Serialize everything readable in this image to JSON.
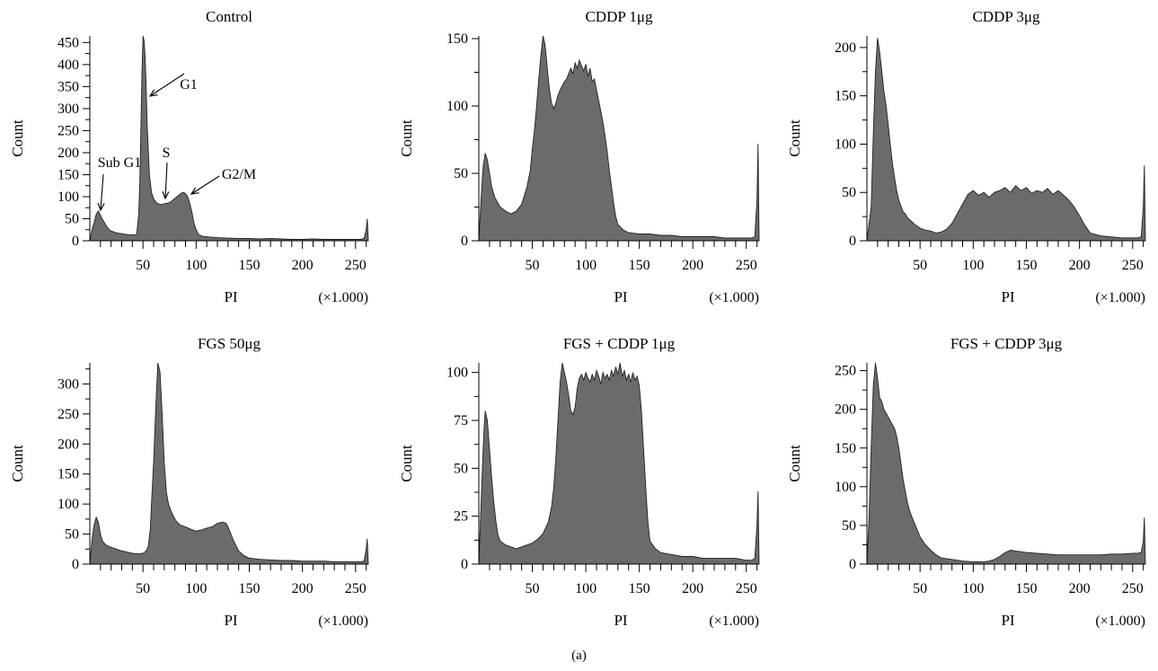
{
  "figure_label": "(a)",
  "colors": {
    "fill": "#6b6b6b",
    "stroke": "#222222"
  },
  "chart_data": [
    {
      "type": "area",
      "title": "Control",
      "xlabel": "PI",
      "x_scale_note": "(×1.000)",
      "ylabel": "Count",
      "xlim": [
        0,
        262
      ],
      "ylim": [
        0,
        465
      ],
      "x_ticks": [
        50,
        100,
        150,
        200,
        250
      ],
      "y_ticks": [
        0,
        50,
        100,
        150,
        200,
        250,
        300,
        350,
        400,
        450
      ],
      "x": [
        0,
        2,
        4,
        6,
        8,
        10,
        12,
        14,
        16,
        18,
        20,
        25,
        30,
        35,
        40,
        44,
        46,
        47,
        48,
        49,
        50,
        51,
        52,
        53,
        54,
        56,
        58,
        60,
        62,
        64,
        66,
        68,
        70,
        72,
        74,
        76,
        78,
        80,
        82,
        84,
        86,
        88,
        90,
        92,
        94,
        96,
        98,
        100,
        102,
        104,
        106,
        110,
        120,
        130,
        140,
        150,
        160,
        170,
        180,
        190,
        200,
        210,
        220,
        230,
        240,
        250,
        255,
        258,
        260,
        261,
        262
      ],
      "y": [
        0,
        25,
        40,
        60,
        68,
        58,
        48,
        40,
        32,
        26,
        22,
        18,
        16,
        14,
        13,
        14,
        60,
        130,
        250,
        380,
        465,
        455,
        420,
        350,
        260,
        150,
        110,
        95,
        88,
        84,
        83,
        82,
        84,
        85,
        86,
        88,
        92,
        96,
        100,
        104,
        108,
        110,
        107,
        100,
        85,
        65,
        40,
        25,
        15,
        12,
        10,
        9,
        7,
        6,
        5,
        5,
        4,
        5,
        4,
        3,
        3,
        4,
        3,
        3,
        3,
        3,
        3,
        6,
        25,
        50,
        0
      ],
      "annotations": [
        {
          "label": "G1",
          "x": 55,
          "y": 355
        },
        {
          "label": "Sub G1",
          "x": 8,
          "y": 68
        },
        {
          "label": "S",
          "x": 72,
          "y": 88
        },
        {
          "label": "G2/M",
          "x": 90,
          "y": 110
        }
      ]
    },
    {
      "type": "area",
      "title": "CDDP 1μg",
      "xlabel": "PI",
      "x_scale_note": "(×1.000)",
      "ylabel": "Count",
      "xlim": [
        0,
        262
      ],
      "ylim": [
        0,
        152
      ],
      "x_ticks": [
        50,
        100,
        150,
        200,
        250
      ],
      "y_ticks": [
        0,
        50,
        100,
        150
      ],
      "x": [
        0,
        2,
        4,
        6,
        8,
        10,
        12,
        15,
        20,
        25,
        30,
        35,
        40,
        45,
        48,
        50,
        52,
        54,
        56,
        58,
        60,
        62,
        64,
        66,
        68,
        70,
        72,
        74,
        76,
        78,
        80,
        82,
        84,
        86,
        88,
        90,
        92,
        94,
        96,
        98,
        100,
        102,
        104,
        106,
        108,
        110,
        112,
        114,
        116,
        118,
        120,
        122,
        124,
        126,
        128,
        130,
        135,
        140,
        150,
        160,
        170,
        180,
        190,
        200,
        210,
        220,
        230,
        240,
        250,
        255,
        258,
        260,
        261,
        262
      ],
      "y": [
        0,
        30,
        55,
        65,
        60,
        50,
        40,
        32,
        25,
        22,
        20,
        22,
        27,
        40,
        52,
        68,
        82,
        100,
        120,
        138,
        152,
        145,
        128,
        112,
        102,
        98,
        102,
        108,
        112,
        115,
        118,
        120,
        124,
        128,
        124,
        132,
        128,
        134,
        130,
        126,
        131,
        122,
        128,
        118,
        120,
        112,
        104,
        96,
        88,
        78,
        66,
        52,
        40,
        28,
        18,
        12,
        8,
        6,
        5,
        5,
        4,
        4,
        3,
        3,
        3,
        3,
        2,
        2,
        2,
        2,
        3,
        30,
        72,
        0
      ]
    },
    {
      "type": "area",
      "title": "CDDP 3μg",
      "xlabel": "PI",
      "x_scale_note": "(×1.000)",
      "ylabel": "Count",
      "xlim": [
        0,
        262
      ],
      "ylim": [
        0,
        212
      ],
      "x_ticks": [
        50,
        100,
        150,
        200,
        250
      ],
      "y_ticks": [
        0,
        50,
        100,
        150,
        200
      ],
      "x": [
        0,
        4,
        6,
        8,
        10,
        12,
        14,
        16,
        18,
        20,
        22,
        24,
        26,
        28,
        30,
        32,
        34,
        36,
        38,
        40,
        42,
        45,
        50,
        55,
        60,
        65,
        70,
        75,
        80,
        85,
        90,
        95,
        100,
        105,
        110,
        115,
        120,
        125,
        130,
        135,
        140,
        145,
        150,
        155,
        160,
        165,
        170,
        175,
        180,
        185,
        190,
        195,
        200,
        205,
        210,
        220,
        230,
        240,
        250,
        255,
        258,
        260,
        261,
        262
      ],
      "y": [
        0,
        35,
        110,
        175,
        210,
        195,
        175,
        155,
        140,
        120,
        100,
        80,
        65,
        52,
        42,
        36,
        30,
        28,
        24,
        22,
        20,
        17,
        13,
        11,
        10,
        8,
        9,
        12,
        18,
        28,
        38,
        48,
        52,
        47,
        50,
        45,
        50,
        52,
        55,
        50,
        57,
        52,
        55,
        49,
        52,
        50,
        54,
        48,
        52,
        47,
        42,
        35,
        26,
        16,
        8,
        5,
        4,
        3,
        3,
        3,
        4,
        35,
        78,
        0
      ]
    },
    {
      "type": "area",
      "title": "FGS 50μg",
      "xlabel": "PI",
      "x_scale_note": "(×1.000)",
      "ylabel": "Count",
      "xlim": [
        0,
        262
      ],
      "ylim": [
        0,
        335
      ],
      "x_ticks": [
        50,
        100,
        150,
        200,
        250
      ],
      "y_ticks": [
        0,
        50,
        100,
        150,
        200,
        250,
        300
      ],
      "x": [
        0,
        2,
        4,
        6,
        8,
        10,
        12,
        15,
        20,
        25,
        30,
        35,
        40,
        45,
        50,
        53,
        55,
        57,
        58,
        60,
        62,
        64,
        66,
        68,
        70,
        72,
        74,
        76,
        78,
        80,
        82,
        85,
        90,
        95,
        100,
        105,
        110,
        115,
        120,
        125,
        128,
        130,
        135,
        140,
        145,
        150,
        160,
        170,
        180,
        190,
        200,
        210,
        220,
        230,
        240,
        250,
        255,
        258,
        260,
        261,
        262
      ],
      "y": [
        0,
        40,
        65,
        78,
        70,
        50,
        38,
        32,
        28,
        25,
        22,
        20,
        18,
        17,
        18,
        22,
        30,
        60,
        100,
        170,
        260,
        335,
        320,
        250,
        170,
        120,
        100,
        90,
        82,
        75,
        70,
        65,
        62,
        58,
        55,
        57,
        60,
        62,
        68,
        70,
        68,
        62,
        40,
        22,
        14,
        10,
        8,
        7,
        6,
        6,
        5,
        5,
        5,
        4,
        4,
        4,
        4,
        5,
        25,
        42,
        0
      ]
    },
    {
      "type": "area",
      "title": "FGS + CDDP 1μg",
      "xlabel": "PI",
      "x_scale_note": "(×1.000)",
      "ylabel": "Count",
      "xlim": [
        0,
        262
      ],
      "ylim": [
        0,
        105
      ],
      "x_ticks": [
        50,
        100,
        150,
        200,
        250
      ],
      "y_ticks": [
        0,
        25,
        50,
        75,
        100
      ],
      "x": [
        0,
        2,
        4,
        5,
        6,
        8,
        10,
        12,
        14,
        16,
        18,
        20,
        25,
        30,
        35,
        40,
        45,
        50,
        55,
        60,
        65,
        68,
        70,
        72,
        74,
        76,
        78,
        80,
        82,
        84,
        86,
        88,
        90,
        92,
        94,
        96,
        98,
        100,
        102,
        104,
        106,
        108,
        110,
        112,
        114,
        116,
        118,
        120,
        122,
        124,
        126,
        128,
        130,
        132,
        134,
        136,
        138,
        140,
        142,
        144,
        146,
        148,
        150,
        152,
        154,
        156,
        158,
        160,
        165,
        170,
        180,
        190,
        200,
        210,
        220,
        230,
        240,
        250,
        255,
        258,
        260,
        261,
        262
      ],
      "y": [
        0,
        30,
        60,
        72,
        80,
        75,
        60,
        45,
        32,
        22,
        15,
        12,
        10,
        9,
        8,
        9,
        10,
        11,
        13,
        16,
        22,
        30,
        40,
        55,
        75,
        95,
        105,
        100,
        95,
        88,
        80,
        78,
        82,
        92,
        97,
        99,
        96,
        100,
        97,
        95,
        99,
        96,
        101,
        98,
        94,
        100,
        97,
        99,
        96,
        101,
        98,
        103,
        99,
        105,
        98,
        101,
        96,
        99,
        95,
        100,
        96,
        98,
        93,
        80,
        60,
        40,
        22,
        12,
        8,
        6,
        5,
        4,
        4,
        3,
        3,
        3,
        3,
        2,
        2,
        3,
        20,
        38,
        0
      ]
    },
    {
      "type": "area",
      "title": "FGS + CDDP 3μg",
      "xlabel": "PI",
      "x_scale_note": "(×1.000)",
      "ylabel": "Count",
      "xlim": [
        0,
        262
      ],
      "ylim": [
        0,
        260
      ],
      "x_ticks": [
        50,
        100,
        150,
        200,
        250
      ],
      "y_ticks": [
        0,
        50,
        100,
        150,
        200,
        250
      ],
      "x": [
        0,
        2,
        4,
        6,
        8,
        10,
        12,
        14,
        16,
        18,
        20,
        22,
        24,
        26,
        28,
        30,
        32,
        34,
        36,
        38,
        40,
        42,
        45,
        48,
        50,
        55,
        60,
        65,
        70,
        80,
        90,
        100,
        110,
        115,
        120,
        125,
        130,
        135,
        140,
        145,
        150,
        160,
        170,
        180,
        190,
        200,
        210,
        220,
        230,
        240,
        250,
        255,
        258,
        260,
        261,
        262
      ],
      "y": [
        0,
        60,
        150,
        230,
        260,
        240,
        215,
        210,
        200,
        195,
        190,
        185,
        180,
        175,
        165,
        150,
        130,
        110,
        95,
        80,
        70,
        62,
        52,
        42,
        35,
        25,
        18,
        12,
        8,
        6,
        4,
        3,
        3,
        4,
        6,
        10,
        15,
        18,
        17,
        16,
        15,
        14,
        13,
        12,
        12,
        12,
        12,
        12,
        13,
        13,
        14,
        14,
        15,
        30,
        60,
        0
      ]
    }
  ]
}
